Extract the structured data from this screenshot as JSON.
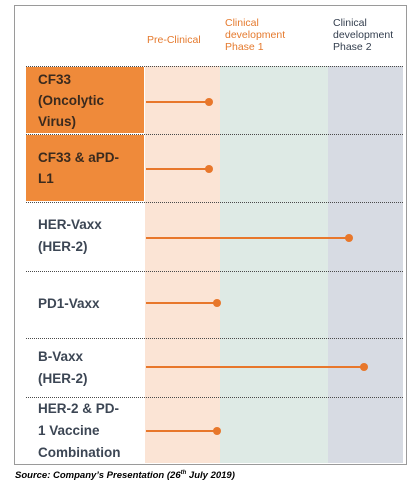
{
  "phases": [
    "Pre-Clinical",
    "Clinical development Phase 1",
    "Clinical development Phase 2"
  ],
  "header": {
    "preclinical": "Pre-Clinical",
    "phase1": "Clinical\ndevelopment\nPhase 1",
    "phase2": "Clinical\ndevelopment\nPhase 2"
  },
  "pipeline": [
    {
      "name": "CF33\n(Oncolytic\nVirus)",
      "highlighted": true,
      "progress_phase": "Pre-Clinical"
    },
    {
      "name": "CF33 & aPD-\nL1",
      "highlighted": true,
      "progress_phase": "Pre-Clinical"
    },
    {
      "name": "HER-Vaxx\n(HER-2)",
      "highlighted": false,
      "progress_phase": "Clinical development Phase 2"
    },
    {
      "name": "PD1-Vaxx",
      "highlighted": false,
      "progress_phase": "Pre-Clinical"
    },
    {
      "name": "B-Vaxx\n(HER-2)",
      "highlighted": false,
      "progress_phase": "Clinical development Phase 2"
    },
    {
      "name": "HER-2 & PD-\n1 Vaccine\nCombination",
      "highlighted": false,
      "progress_phase": "Pre-Clinical"
    }
  ],
  "source": {
    "prefix": "Source: Company’s Presentation (26",
    "sup": "th",
    "suffix": " July 2019)"
  },
  "colors": {
    "accent_orange": "#ef8a3a",
    "bar_orange": "#e8772b",
    "preclinical_bg": "#fbe4d5",
    "phase1_bg": "#deeae5",
    "phase2_bg": "#d7dbe3"
  }
}
